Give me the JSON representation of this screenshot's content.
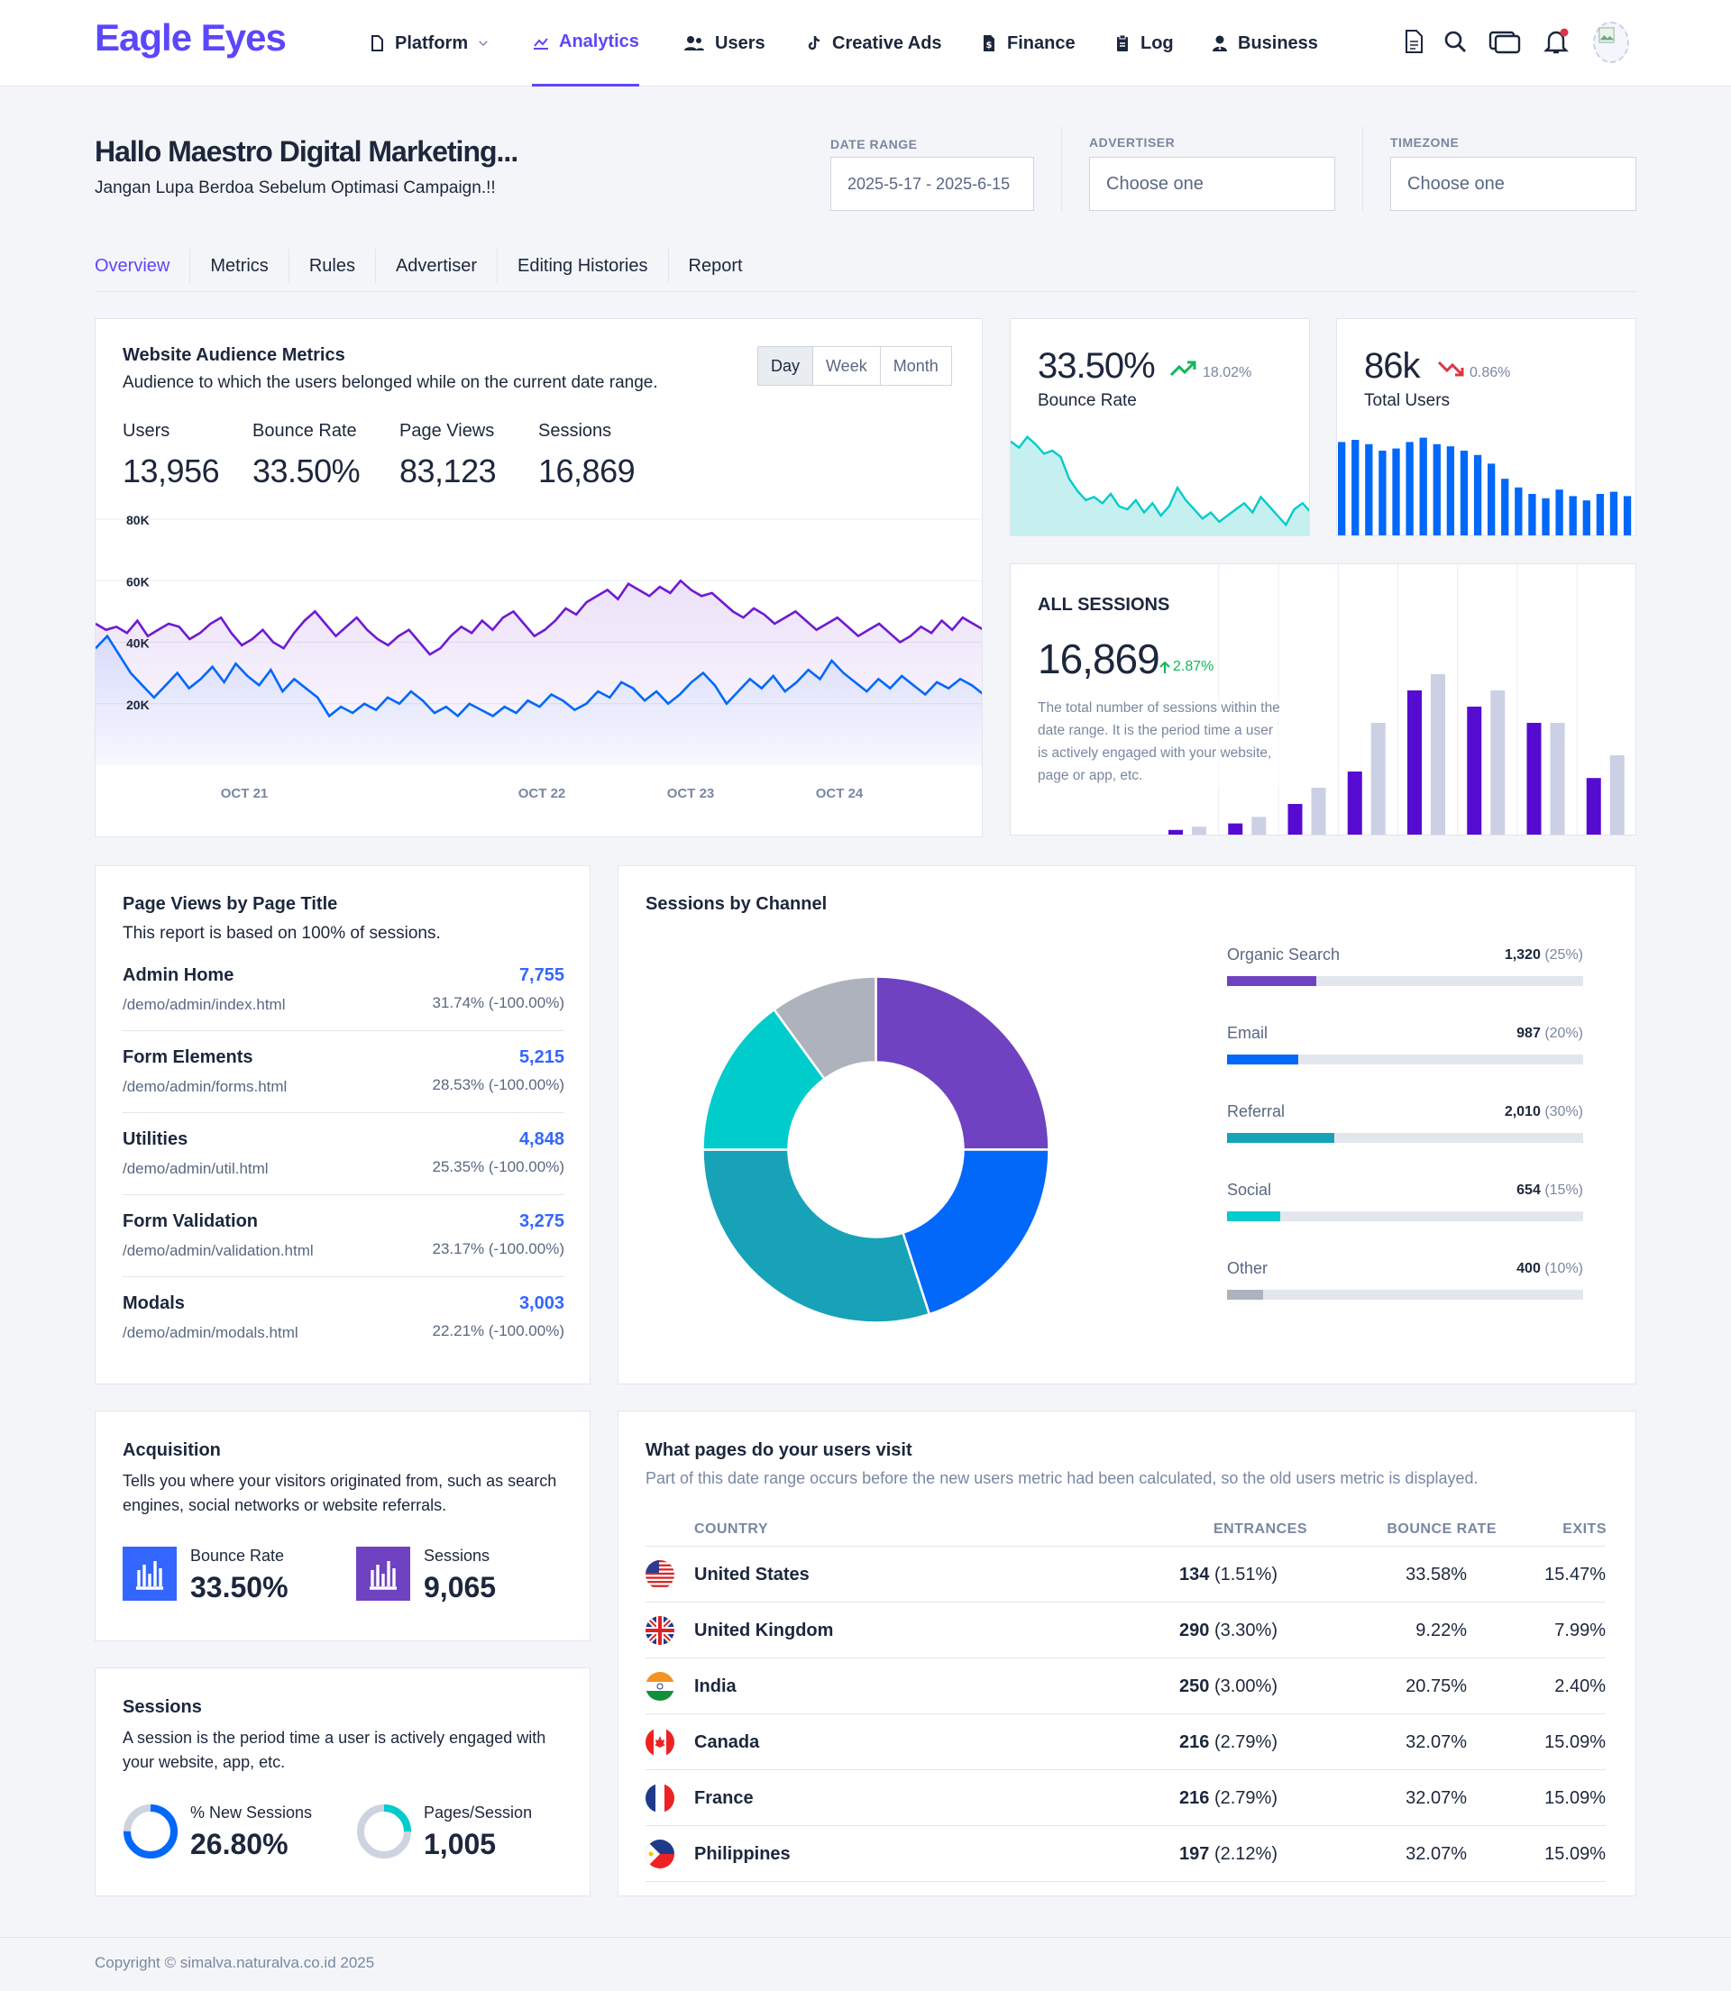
{
  "header": {
    "logo": "Eagle Eyes",
    "nav": [
      {
        "label": "Platform",
        "icon": "file-icon"
      },
      {
        "label": "Analytics",
        "icon": "chart-area-icon"
      },
      {
        "label": "Users",
        "icon": "users-icon"
      },
      {
        "label": "Creative Ads",
        "icon": "tiktok-icon"
      },
      {
        "label": "Finance",
        "icon": "dollar-file-icon"
      },
      {
        "label": "Log",
        "icon": "clipboard-icon"
      },
      {
        "label": "Business",
        "icon": "user-tie-icon"
      }
    ],
    "active_nav": "Analytics"
  },
  "page": {
    "title": "Hallo Maestro Digital Marketing...",
    "subtitle": "Jangan Lupa Berdoa Sebelum Optimasi Campaign.!!",
    "filters": {
      "date_range_label": "DATE RANGE",
      "date_range_value": "2025-5-17 - 2025-6-15",
      "advertiser_label": "ADVERTISER",
      "advertiser_placeholder": "Choose one",
      "timezone_label": "TIMEZONE",
      "timezone_placeholder": "Choose one"
    },
    "tabs": [
      "Overview",
      "Metrics",
      "Rules",
      "Advertiser",
      "Editing Histories",
      "Report"
    ]
  },
  "audience": {
    "title": "Website Audience Metrics",
    "subtitle": "Audience to which the users belonged while on the current date range.",
    "periods": [
      "Day",
      "Week",
      "Month"
    ],
    "metrics": [
      {
        "label": "Users",
        "value": "13,956"
      },
      {
        "label": "Bounce Rate",
        "value": "33.50%"
      },
      {
        "label": "Page Views",
        "value": "83,123"
      },
      {
        "label": "Sessions",
        "value": "16,869"
      }
    ]
  },
  "chart_data": [
    {
      "type": "area",
      "y_ticks": [
        "80K",
        "60K",
        "40K",
        "20K"
      ],
      "ylim": [
        0,
        80000
      ],
      "x_ticks": [
        "OCT 21",
        "OCT 22",
        "OCT 23",
        "OCT 24"
      ],
      "grid": true,
      "series": [
        {
          "color": "#6f1ad1",
          "values": [
            46000,
            44000,
            45000,
            43000,
            47000,
            42000,
            44000,
            46000,
            45000,
            41000,
            43000,
            46000,
            48000,
            43000,
            39000,
            41000,
            44000,
            40000,
            38000,
            43000,
            47000,
            50000,
            46000,
            42000,
            45000,
            48000,
            44000,
            41000,
            39000,
            42000,
            44000,
            40000,
            36000,
            38000,
            42000,
            45000,
            43000,
            47000,
            44000,
            48000,
            50000,
            46000,
            42000,
            44000,
            47000,
            51000,
            49000,
            53000,
            55000,
            57000,
            54000,
            59000,
            57000,
            55000,
            58000,
            56000,
            60000,
            57000,
            55000,
            56000,
            53000,
            50000,
            48000,
            51000,
            49000,
            46000,
            48000,
            50000,
            47000,
            44000,
            46000,
            48000,
            45000,
            42000,
            44000,
            46000,
            43000,
            40000,
            42000,
            45000,
            43000,
            47000,
            44000,
            48000,
            46000,
            44000
          ]
        },
        {
          "color": "#0168fa",
          "values": [
            38000,
            42000,
            36000,
            30000,
            26000,
            22000,
            26000,
            30000,
            25000,
            28000,
            32000,
            27000,
            33000,
            29000,
            26000,
            31000,
            24000,
            28000,
            25000,
            22000,
            16000,
            19000,
            17000,
            20000,
            18000,
            22000,
            20000,
            24000,
            21000,
            17000,
            19000,
            16000,
            20000,
            18000,
            16000,
            19000,
            17000,
            21000,
            19000,
            23000,
            21000,
            18000,
            20000,
            24000,
            22000,
            27000,
            25000,
            21000,
            24000,
            20000,
            23000,
            27000,
            30000,
            26000,
            20000,
            24000,
            28000,
            25000,
            29000,
            24000,
            27000,
            31000,
            28000,
            34000,
            30000,
            27000,
            24000,
            28000,
            25000,
            29000,
            26000,
            23000,
            27000,
            25000,
            28000,
            26000,
            23000
          ]
        }
      ]
    },
    {
      "type": "area",
      "title": "Bounce Rate",
      "value": "33.50%",
      "change": "18.02%",
      "trend": "up",
      "values": [
        62,
        58,
        65,
        60,
        54,
        56,
        52,
        38,
        30,
        24,
        26,
        22,
        28,
        20,
        18,
        24,
        16,
        22,
        14,
        20,
        32,
        24,
        18,
        12,
        16,
        10,
        14,
        18,
        22,
        16,
        26,
        20,
        14,
        8,
        18,
        22,
        16
      ]
    },
    {
      "type": "bar",
      "title": "Total Users",
      "value": "86k",
      "change": "0.86%",
      "trend": "down",
      "values": [
        88,
        90,
        86,
        80,
        82,
        88,
        92,
        86,
        84,
        80,
        76,
        68,
        54,
        46,
        40,
        36,
        44,
        38,
        34,
        40,
        42,
        38
      ]
    },
    {
      "type": "bar",
      "title": "ALL SESSIONS",
      "value": "16,869",
      "change": "2.87%",
      "description": "The total number of sessions within the date range. It is the period time a user is actively engaged with your website, page or app, etc.",
      "series": [
        {
          "color": "#560bd0",
          "values": [
            4,
            8,
            20,
            40,
            90,
            80,
            70,
            36
          ]
        },
        {
          "color": "#cbd0e5",
          "values": [
            6,
            12,
            30,
            70,
            100,
            90,
            70,
            50
          ]
        }
      ]
    }
  ],
  "page_views": {
    "title": "Page Views by Page Title",
    "subtitle": "This report is based on 100% of sessions.",
    "rows": [
      {
        "title": "Admin Home",
        "url": "/demo/admin/index.html",
        "value": "7,755",
        "pct": "31.74% (-100.00%)"
      },
      {
        "title": "Form Elements",
        "url": "/demo/admin/forms.html",
        "value": "5,215",
        "pct": "28.53% (-100.00%)"
      },
      {
        "title": "Utilities",
        "url": "/demo/admin/util.html",
        "value": "4,848",
        "pct": "25.35% (-100.00%)"
      },
      {
        "title": "Form Validation",
        "url": "/demo/admin/validation.html",
        "value": "3,275",
        "pct": "23.17% (-100.00%)"
      },
      {
        "title": "Modals",
        "url": "/demo/admin/modals.html",
        "value": "3,003",
        "pct": "22.21% (-100.00%)"
      }
    ]
  },
  "channels": {
    "title": "Sessions by Channel",
    "items": [
      {
        "name": "Organic Search",
        "value": "1,320",
        "pct": "(25%)",
        "share": 0.25,
        "color": "#6f42c1"
      },
      {
        "name": "Email",
        "value": "987",
        "pct": "(20%)",
        "share": 0.2,
        "color": "#0168fa"
      },
      {
        "name": "Referral",
        "value": "2,010",
        "pct": "(30%)",
        "share": 0.3,
        "color": "#17a2b8"
      },
      {
        "name": "Social",
        "value": "654",
        "pct": "(15%)",
        "share": 0.15,
        "color": "#00cccc"
      },
      {
        "name": "Other",
        "value": "400",
        "pct": "(10%)",
        "share": 0.1,
        "color": "#adb2bd"
      }
    ]
  },
  "acquisition": {
    "title": "Acquisition",
    "subtitle": "Tells you where your visitors originated from, such as search engines, social networks or website referrals.",
    "stats": [
      {
        "label": "Bounce Rate",
        "value": "33.50%",
        "color": "#3366ff"
      },
      {
        "label": "Sessions",
        "value": "9,065",
        "color": "#6f42c1"
      }
    ]
  },
  "sessions": {
    "title": "Sessions",
    "subtitle": "A session is the period time a user is actively engaged with your website, app, etc.",
    "stats": [
      {
        "label": "% New Sessions",
        "value": "26.80%",
        "fill": 0.75,
        "color": "#0168fa"
      },
      {
        "label": "Pages/Session",
        "value": "1,005",
        "fill": 0.25,
        "color": "#00cccc"
      }
    ]
  },
  "visits": {
    "title": "What pages do your users visit",
    "subtitle": "Part of this date range occurs before the new users metric had been calculated, so the old users metric is displayed.",
    "columns": [
      "COUNTRY",
      "ENTRANCES",
      "BOUNCE RATE",
      "EXITS"
    ],
    "rows": [
      {
        "country": "United States",
        "entrances": "134",
        "entrances_pct": "(1.51%)",
        "bounce": "33.58%",
        "exits": "15.47%"
      },
      {
        "country": "United Kingdom",
        "entrances": "290",
        "entrances_pct": "(3.30%)",
        "bounce": "9.22%",
        "exits": "7.99%"
      },
      {
        "country": "India",
        "entrances": "250",
        "entrances_pct": "(3.00%)",
        "bounce": "20.75%",
        "exits": "2.40%"
      },
      {
        "country": "Canada",
        "entrances": "216",
        "entrances_pct": "(2.79%)",
        "bounce": "32.07%",
        "exits": "15.09%"
      },
      {
        "country": "France",
        "entrances": "216",
        "entrances_pct": "(2.79%)",
        "bounce": "32.07%",
        "exits": "15.09%"
      },
      {
        "country": "Philippines",
        "entrances": "197",
        "entrances_pct": "(2.12%)",
        "bounce": "32.07%",
        "exits": "15.09%"
      }
    ]
  },
  "footer": {
    "text": "Copyright © simalva.naturalva.co.id 2025"
  }
}
